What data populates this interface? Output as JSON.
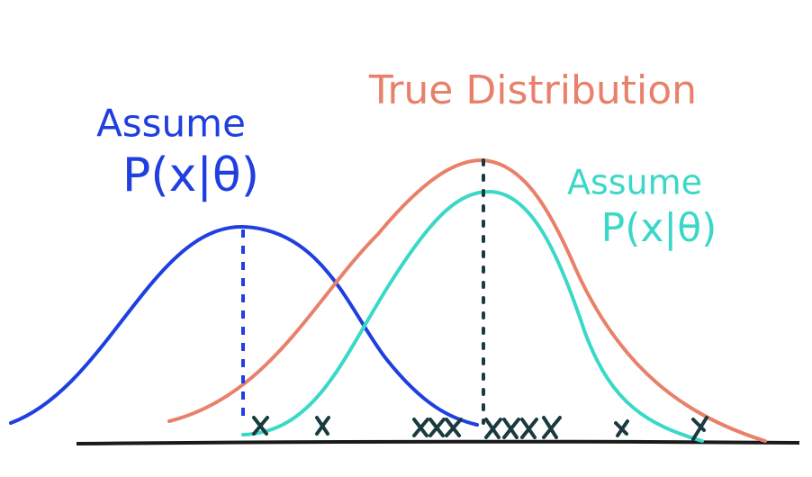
{
  "title": "True Distribution",
  "left_label": {
    "line1": "Assume",
    "line2": "P(x|θ)"
  },
  "right_label": {
    "line1": "Assume",
    "line2": "P(x|θ)"
  }
}
